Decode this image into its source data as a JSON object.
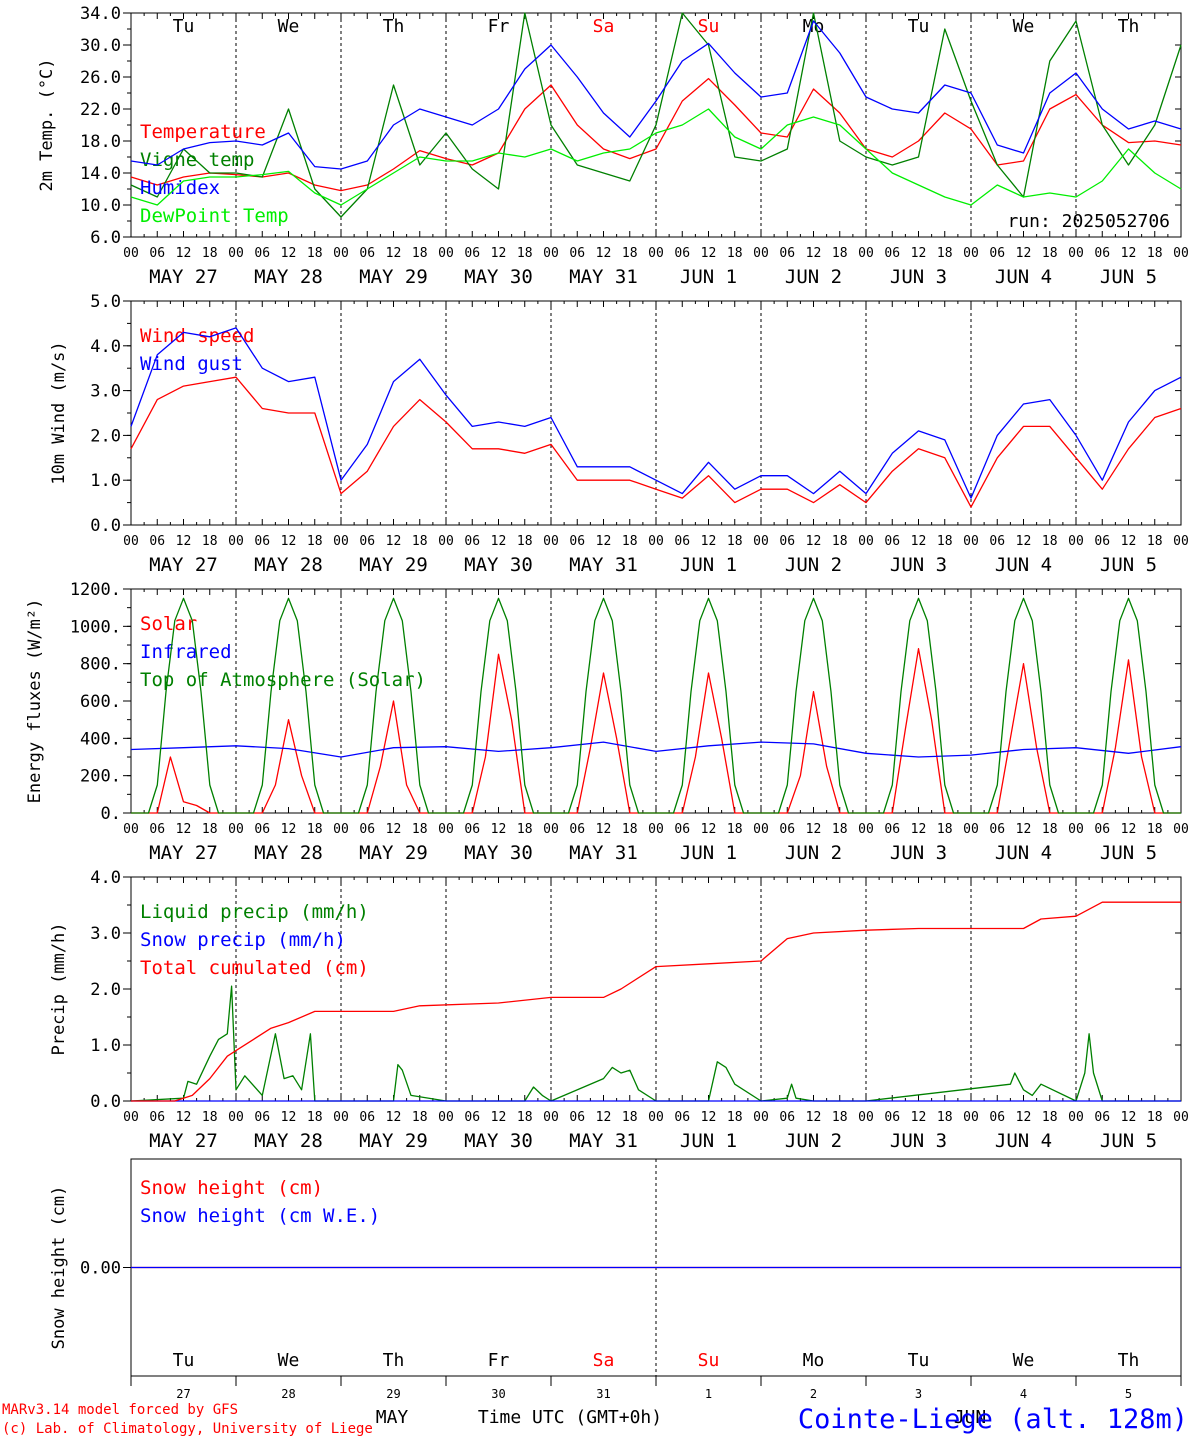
{
  "meta": {
    "run_label": "run: 2025052706",
    "footer_model": "MARv3.14 model forced by GFS",
    "footer_lab": "(c) Lab. of Climatology, University of Liege",
    "x_title": "Time UTC (GMT+0h)",
    "station": "Cointe-Liege (alt. 128m)",
    "bottom_month_left": "MAY",
    "bottom_month_right": "JUN"
  },
  "time_axis": {
    "hour_ticks": [
      "00",
      "06",
      "12",
      "18"
    ],
    "date_labels": [
      "MAY 27",
      "MAY 28",
      "MAY 29",
      "MAY 30",
      "MAY 31",
      "JUN  1",
      "JUN  2",
      "JUN  3",
      "JUN  4",
      "JUN  5"
    ],
    "weekdays": [
      "Tu",
      "We",
      "Th",
      "Fr",
      "Sa",
      "Su",
      "Mo",
      "Tu",
      "We",
      "Th"
    ],
    "weekend_days": [
      4,
      5
    ],
    "day_numbers": [
      "27",
      "28",
      "29",
      "30",
      "31",
      "1",
      "2",
      "3",
      "4",
      "5"
    ],
    "weekday_color": "#000000",
    "weekend_color": "#ff0000"
  },
  "colors": {
    "red": "#ff0000",
    "green": "#008000",
    "blue": "#0000ff",
    "lime": "#00ee00"
  },
  "chart_data": [
    {
      "type": "line",
      "ylabel": "2m Temp. (°C)",
      "ylim": [
        6,
        34
      ],
      "yticks": [
        "6.0",
        "10.0",
        "14.0",
        "18.0",
        "22.0",
        "26.0",
        "30.0",
        "34.0"
      ],
      "x_unit": "hours since 2025-05-27 00 UTC",
      "series": [
        {
          "name": "Temperature",
          "color": "#ff0000",
          "x": [
            0,
            6,
            12,
            18,
            24,
            30,
            36,
            42,
            48,
            54,
            60,
            66,
            72,
            78,
            84,
            90,
            96,
            102,
            108,
            114,
            120,
            126,
            132,
            138,
            144,
            150,
            156,
            162,
            168,
            174,
            180,
            186,
            192,
            198,
            204,
            210,
            216,
            222,
            228,
            234,
            240
          ],
          "y": [
            13.5,
            12.5,
            13.5,
            14.0,
            13.8,
            13.5,
            14.0,
            12.5,
            11.8,
            12.5,
            14.5,
            16.8,
            15.8,
            15.0,
            16.5,
            22.0,
            25.0,
            20.0,
            17.0,
            15.8,
            17.0,
            23.0,
            25.8,
            22.5,
            19.0,
            18.5,
            24.5,
            21.5,
            17.0,
            16.0,
            18.0,
            21.5,
            19.5,
            15.0,
            15.5,
            22.0,
            23.8,
            20.0,
            17.8,
            18.0,
            17.5
          ]
        },
        {
          "name": "Vigne temp",
          "color": "#008000",
          "x": [
            0,
            6,
            12,
            18,
            24,
            30,
            36,
            42,
            48,
            54,
            60,
            66,
            72,
            78,
            84,
            90,
            96,
            102,
            108,
            114,
            120,
            126,
            132,
            138,
            144,
            150,
            156,
            162,
            168,
            174,
            180,
            186,
            192,
            198,
            204,
            210,
            216,
            222,
            228,
            234,
            240
          ],
          "y": [
            12.5,
            11.0,
            17.0,
            14.0,
            14.0,
            13.5,
            22.0,
            12.0,
            8.5,
            12.0,
            25.0,
            15.0,
            19.0,
            14.5,
            12.0,
            34.0,
            20.0,
            15.0,
            14.0,
            13.0,
            20.0,
            34.0,
            30.0,
            16.0,
            15.5,
            17.0,
            34.0,
            18.0,
            16.0,
            15.0,
            16.0,
            32.0,
            23.0,
            15.0,
            11.0,
            28.0,
            33.0,
            20.0,
            15.0,
            20.0,
            30.0
          ]
        },
        {
          "name": "Humidex",
          "color": "#0000ff",
          "x": [
            0,
            6,
            12,
            18,
            24,
            30,
            36,
            42,
            48,
            54,
            60,
            66,
            72,
            78,
            84,
            90,
            96,
            102,
            108,
            114,
            120,
            126,
            132,
            138,
            144,
            150,
            156,
            162,
            168,
            174,
            180,
            186,
            192,
            198,
            204,
            210,
            216,
            222,
            228,
            234,
            240
          ],
          "y": [
            15.5,
            15.0,
            17.0,
            17.8,
            18.0,
            17.5,
            19.0,
            14.8,
            14.5,
            15.5,
            20.0,
            22.0,
            21.0,
            20.0,
            22.0,
            27.0,
            30.0,
            26.0,
            21.5,
            18.5,
            23.0,
            28.0,
            30.2,
            26.5,
            23.5,
            24.0,
            33.0,
            29.0,
            23.5,
            22.0,
            21.5,
            25.0,
            24.0,
            17.5,
            16.5,
            24.0,
            26.5,
            22.0,
            19.5,
            20.5,
            19.5
          ]
        },
        {
          "name": "DewPoint Temp",
          "color": "#00ee00",
          "x": [
            0,
            6,
            12,
            18,
            24,
            30,
            36,
            42,
            48,
            54,
            60,
            66,
            72,
            78,
            84,
            90,
            96,
            102,
            108,
            114,
            120,
            126,
            132,
            138,
            144,
            150,
            156,
            162,
            168,
            174,
            180,
            186,
            192,
            198,
            204,
            210,
            216,
            222,
            228,
            234,
            240
          ],
          "y": [
            11.0,
            10.0,
            13.0,
            13.5,
            13.5,
            13.8,
            14.2,
            11.5,
            10.0,
            12.0,
            14.0,
            16.0,
            15.5,
            15.5,
            16.5,
            16.0,
            17.0,
            15.5,
            16.5,
            17.0,
            19.0,
            20.0,
            22.0,
            18.5,
            17.0,
            20.0,
            21.0,
            20.0,
            17.0,
            14.0,
            12.5,
            11.0,
            10.0,
            12.5,
            11.0,
            11.5,
            11.0,
            13.0,
            17.0,
            14.0,
            12.0
          ]
        }
      ]
    },
    {
      "type": "line",
      "ylabel": "10m Wind (m/s)",
      "ylim": [
        0,
        5
      ],
      "yticks": [
        "0.0",
        "1.0",
        "2.0",
        "3.0",
        "4.0",
        "5.0"
      ],
      "series": [
        {
          "name": "Wind speed",
          "color": "#ff0000",
          "x": [
            0,
            6,
            12,
            18,
            24,
            30,
            36,
            42,
            48,
            54,
            60,
            66,
            72,
            78,
            84,
            90,
            96,
            102,
            108,
            114,
            120,
            126,
            132,
            138,
            144,
            150,
            156,
            162,
            168,
            174,
            180,
            186,
            192,
            198,
            204,
            210,
            216,
            222,
            228,
            234,
            240
          ],
          "y": [
            1.7,
            2.8,
            3.1,
            3.2,
            3.3,
            2.6,
            2.5,
            2.5,
            0.7,
            1.2,
            2.2,
            2.8,
            2.3,
            1.7,
            1.7,
            1.6,
            1.8,
            1.0,
            1.0,
            1.0,
            0.8,
            0.6,
            1.1,
            0.5,
            0.8,
            0.8,
            0.5,
            0.9,
            0.5,
            1.2,
            1.7,
            1.5,
            0.4,
            1.5,
            2.2,
            2.2,
            1.5,
            0.8,
            1.7,
            2.4,
            2.6
          ]
        },
        {
          "name": "Wind gust",
          "color": "#0000ff",
          "x": [
            0,
            6,
            12,
            18,
            24,
            30,
            36,
            42,
            48,
            54,
            60,
            66,
            72,
            78,
            84,
            90,
            96,
            102,
            108,
            114,
            120,
            126,
            132,
            138,
            144,
            150,
            156,
            162,
            168,
            174,
            180,
            186,
            192,
            198,
            204,
            210,
            216,
            222,
            228,
            234,
            240
          ],
          "y": [
            2.2,
            3.8,
            4.3,
            4.2,
            4.4,
            3.5,
            3.2,
            3.3,
            1.0,
            1.8,
            3.2,
            3.7,
            2.9,
            2.2,
            2.3,
            2.2,
            2.4,
            1.3,
            1.3,
            1.3,
            1.0,
            0.7,
            1.4,
            0.8,
            1.1,
            1.1,
            0.7,
            1.2,
            0.7,
            1.6,
            2.1,
            1.9,
            0.6,
            2.0,
            2.7,
            2.8,
            2.0,
            1.0,
            2.3,
            3.0,
            3.3
          ]
        }
      ]
    },
    {
      "type": "line",
      "ylabel": "Energy fluxes (W/m²)",
      "ylim": [
        0,
        1200
      ],
      "yticks": [
        "0.",
        "200.",
        "400.",
        "600.",
        "800.",
        "1000.",
        "1200."
      ],
      "series": [
        {
          "name": "Solar",
          "color": "#ff0000",
          "x": [
            0,
            6,
            9,
            12,
            15,
            18,
            24,
            30,
            33,
            36,
            39,
            42,
            48,
            54,
            57,
            60,
            63,
            66,
            72,
            78,
            81,
            84,
            87,
            90,
            96,
            102,
            105,
            108,
            111,
            114,
            120,
            126,
            129,
            132,
            135,
            138,
            144,
            150,
            153,
            156,
            159,
            162,
            168,
            174,
            177,
            180,
            183,
            186,
            192,
            198,
            201,
            204,
            207,
            210,
            216,
            222,
            225,
            228,
            231,
            234,
            240
          ],
          "y": [
            0,
            0,
            300,
            60,
            40,
            0,
            0,
            0,
            150,
            500,
            200,
            0,
            0,
            0,
            250,
            600,
            150,
            0,
            0,
            0,
            300,
            850,
            500,
            0,
            0,
            0,
            350,
            750,
            400,
            0,
            0,
            0,
            300,
            750,
            400,
            0,
            0,
            0,
            200,
            650,
            250,
            0,
            0,
            0,
            450,
            880,
            500,
            0,
            0,
            0,
            400,
            800,
            350,
            0,
            0,
            0,
            350,
            820,
            300,
            0,
            0
          ]
        },
        {
          "name": "Infrared",
          "color": "#0000ff",
          "x": [
            0,
            12,
            24,
            36,
            48,
            60,
            72,
            84,
            96,
            108,
            120,
            132,
            144,
            156,
            168,
            180,
            192,
            204,
            216,
            228,
            240
          ],
          "y": [
            340,
            350,
            360,
            345,
            300,
            350,
            355,
            330,
            350,
            380,
            330,
            360,
            380,
            370,
            320,
            300,
            310,
            340,
            350,
            320,
            355
          ]
        },
        {
          "name": "Top of Atmosphere (Solar)",
          "color": "#008000",
          "x": [
            0,
            2,
            4,
            6,
            8,
            10,
            12,
            14,
            16,
            18,
            20,
            22,
            24
          ],
          "y": [
            0,
            0,
            0,
            150,
            650,
            1030,
            1150,
            1030,
            650,
            150,
            0,
            0,
            0
          ]
        }
      ]
    },
    {
      "type": "line",
      "ylabel": "Precip (mm/h)",
      "ylim": [
        0,
        4
      ],
      "yticks": [
        "0.0",
        "1.0",
        "2.0",
        "3.0",
        "4.0"
      ],
      "series": [
        {
          "name": "Liquid precip (mm/h)",
          "color": "#008000",
          "x": [
            0,
            12,
            13,
            15,
            18,
            20,
            22,
            23,
            24,
            26,
            30,
            33,
            35,
            37,
            39,
            41,
            42,
            48,
            60,
            61,
            62,
            64,
            72,
            90,
            92,
            94,
            96,
            108,
            110,
            112,
            114,
            116,
            120,
            132,
            134,
            136,
            138,
            144,
            150,
            151,
            152,
            156,
            168,
            201,
            202,
            204,
            206,
            208,
            216,
            218,
            219,
            220,
            222,
            228,
            240
          ],
          "y": [
            0,
            0.05,
            0.35,
            0.3,
            0.8,
            1.1,
            1.2,
            2.05,
            0.2,
            0.45,
            0.1,
            1.2,
            0.4,
            0.45,
            0.2,
            1.2,
            0,
            0,
            0,
            0.65,
            0.55,
            0.1,
            0,
            0,
            0.25,
            0.1,
            0,
            0.4,
            0.6,
            0.5,
            0.55,
            0.2,
            0,
            0,
            0.7,
            0.6,
            0.3,
            0,
            0.05,
            0.3,
            0.05,
            0,
            0,
            0.3,
            0.5,
            0.2,
            0.1,
            0.3,
            0,
            0.5,
            1.2,
            0.5,
            0,
            0,
            0
          ]
        },
        {
          "name": "Snow precip (mm/h)",
          "color": "#0000ff",
          "x": [
            0,
            240
          ],
          "y": [
            0,
            0
          ]
        },
        {
          "name": "Total cumulated (cm)",
          "color": "#ff0000",
          "x": [
            0,
            6,
            10,
            14,
            18,
            22,
            24,
            28,
            32,
            36,
            42,
            48,
            60,
            66,
            84,
            96,
            108,
            112,
            120,
            132,
            144,
            150,
            156,
            168,
            180,
            198,
            204,
            208,
            216,
            222,
            240
          ],
          "y": [
            0,
            0,
            0,
            0.1,
            0.4,
            0.8,
            0.9,
            1.1,
            1.3,
            1.4,
            1.6,
            1.6,
            1.6,
            1.7,
            1.75,
            1.85,
            1.85,
            2.0,
            2.4,
            2.45,
            2.5,
            2.9,
            3.0,
            3.05,
            3.08,
            3.08,
            3.08,
            3.25,
            3.3,
            3.55,
            3.55
          ]
        }
      ]
    },
    {
      "type": "line",
      "ylabel": "Snow height (cm)",
      "ylim": [
        -1,
        1
      ],
      "yticks": [
        "0.00"
      ],
      "series": [
        {
          "name": "Snow height (cm)",
          "color": "#ff0000",
          "x": [
            0,
            240
          ],
          "y": [
            0,
            0
          ]
        },
        {
          "name": "Snow height (cm W.E.)",
          "color": "#0000ff",
          "x": [
            0,
            240
          ],
          "y": [
            0,
            0
          ]
        }
      ]
    }
  ]
}
